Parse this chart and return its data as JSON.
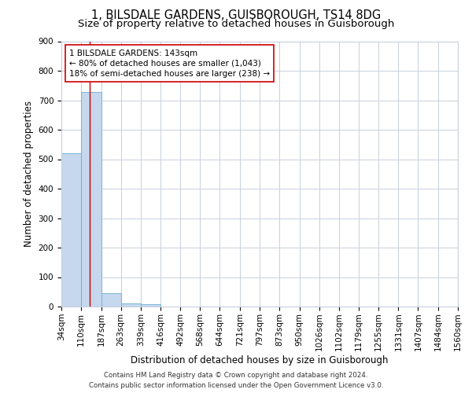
{
  "title": "1, BILSDALE GARDENS, GUISBOROUGH, TS14 8DG",
  "subtitle": "Size of property relative to detached houses in Guisborough",
  "xlabel": "Distribution of detached houses by size in Guisborough",
  "ylabel": "Number of detached properties",
  "footer_line1": "Contains HM Land Registry data © Crown copyright and database right 2024.",
  "footer_line2": "Contains public sector information licensed under the Open Government Licence v3.0.",
  "bins": [
    34,
    110,
    187,
    263,
    339,
    416,
    492,
    568,
    644,
    721,
    797,
    873,
    950,
    1026,
    1102,
    1179,
    1255,
    1331,
    1407,
    1484,
    1560
  ],
  "bar_heights": [
    520,
    728,
    45,
    12,
    8,
    0,
    0,
    0,
    0,
    0,
    0,
    0,
    0,
    0,
    0,
    0,
    0,
    0,
    0,
    0
  ],
  "bar_color": "#c5d8ed",
  "bar_edge_color": "#6aaed6",
  "property_size": 143,
  "property_line_color": "#cc0000",
  "annotation_text": "1 BILSDALE GARDENS: 143sqm\n← 80% of detached houses are smaller (1,043)\n18% of semi-detached houses are larger (238) →",
  "annotation_box_color": "#ffffff",
  "annotation_box_edge_color": "#cc0000",
  "ylim": [
    0,
    900
  ],
  "yticks": [
    0,
    100,
    200,
    300,
    400,
    500,
    600,
    700,
    800,
    900
  ],
  "background_color": "#ffffff",
  "grid_color": "#c8d0dc",
  "title_fontsize": 10.5,
  "subtitle_fontsize": 9.5,
  "axis_label_fontsize": 8.5,
  "tick_fontsize": 7.5,
  "annotation_fontsize": 7.5,
  "footer_fontsize": 6.2
}
